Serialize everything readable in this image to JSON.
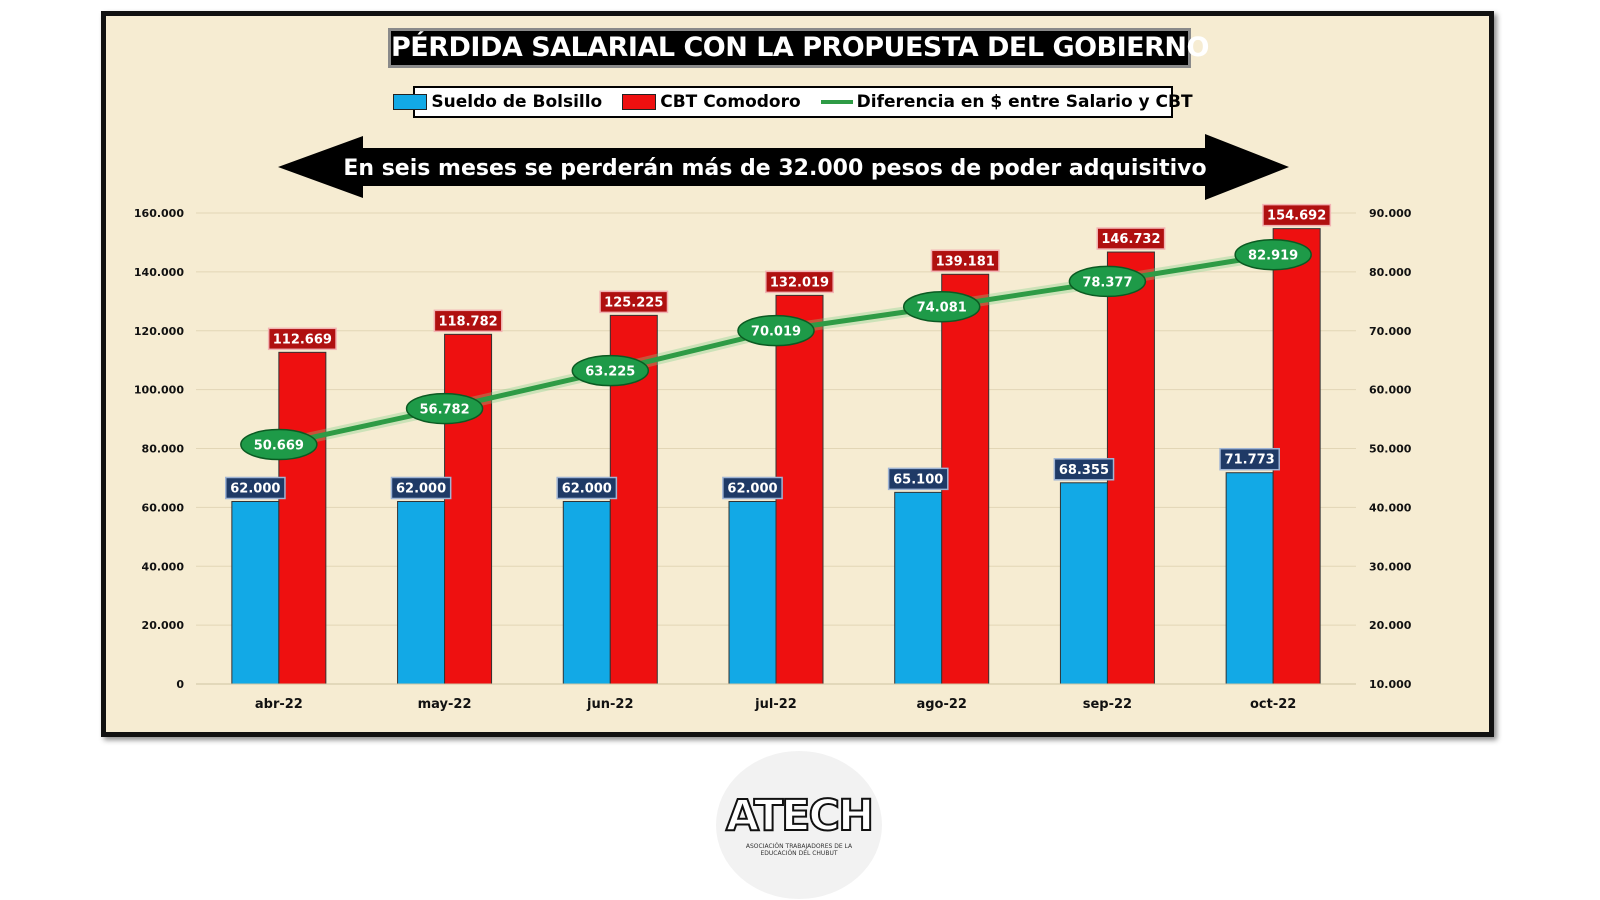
{
  "chart_data": {
    "type": "bar",
    "title": "PÉRDIDA SALARIAL CON LA PROPUESTA DEL GOBIERNO",
    "annotation": "En seis meses se perderán más de 32.000 pesos de poder adquisitivo",
    "categories": [
      "abr-22",
      "may-22",
      "jun-22",
      "jul-22",
      "ago-22",
      "sep-22",
      "oct-22"
    ],
    "series": [
      {
        "name": "Sueldo de Bolsillo",
        "type": "bar",
        "axis": "left",
        "color": "#12a9e6",
        "values": [
          62000,
          62000,
          62000,
          62000,
          65100,
          68355,
          71773
        ],
        "labels": [
          "62.000",
          "62.000",
          "62.000",
          "62.000",
          "65.100",
          "68.355",
          "71.773"
        ]
      },
      {
        "name": "CBT Comodoro",
        "type": "bar",
        "axis": "left",
        "color": "#ee1010",
        "values": [
          112669,
          118782,
          125225,
          132019,
          139181,
          146732,
          154692
        ],
        "labels": [
          "112.669",
          "118.782",
          "125.225",
          "132.019",
          "139.181",
          "146.732",
          "154.692"
        ]
      },
      {
        "name": "Diferencia en $ entre Salario y CBT",
        "type": "line",
        "axis": "right",
        "color": "#2e9b45",
        "values": [
          50669,
          56782,
          63225,
          70019,
          74081,
          78377,
          82919
        ],
        "labels": [
          "50.669",
          "56.782",
          "63.225",
          "70.019",
          "74.081",
          "78.377",
          "82.919"
        ]
      }
    ],
    "ylim": [
      0,
      160000
    ],
    "yticks": [
      0,
      20000,
      40000,
      60000,
      80000,
      100000,
      120000,
      140000,
      160000
    ],
    "ytick_labels": [
      "0",
      "20.000",
      "40.000",
      "60.000",
      "80.000",
      "100.000",
      "120.000",
      "140.000",
      "160.000"
    ],
    "y2lim": [
      10000,
      90000
    ],
    "y2ticks": [
      10000,
      20000,
      30000,
      40000,
      50000,
      60000,
      70000,
      80000,
      90000
    ],
    "y2tick_labels": [
      "10.000",
      "20.000",
      "30.000",
      "40.000",
      "50.000",
      "60.000",
      "70.000",
      "80.000",
      "90.000"
    ],
    "grid": true,
    "legend_position": "top-center"
  },
  "logo": {
    "text": "ATECH",
    "subtitle": "ASOCIACIÓN TRABAJADORES DE LA EDUCACIÓN DEL CHUBUT"
  }
}
